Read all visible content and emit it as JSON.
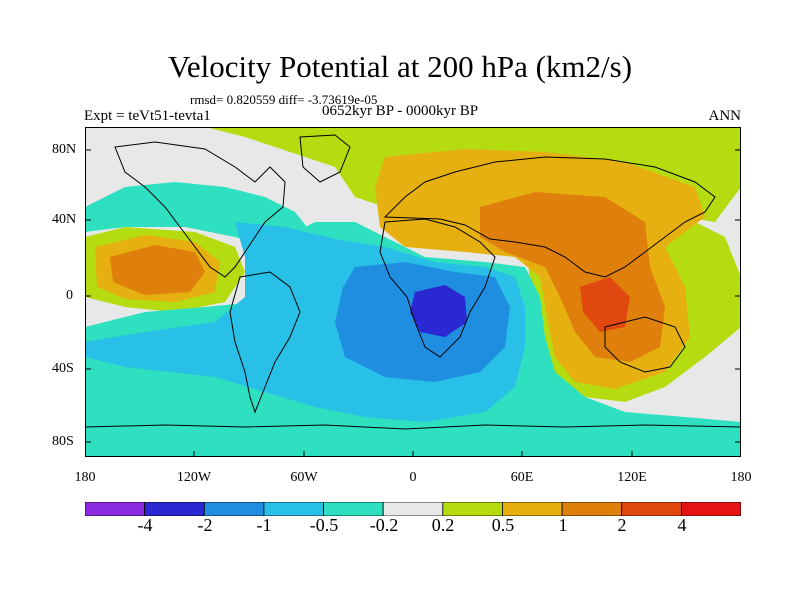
{
  "title": "Velocity Potential at 200 hPa (km2/s)",
  "stats": "rmsd= 0.820559 diff= -3.73619e-05",
  "experiment": "Expt = teVt51-tevta1",
  "period": "0652kyr BP - 0000kyr BP",
  "season": "ANN",
  "lat_labels": [
    "80N",
    "40N",
    "0",
    "40S",
    "80S"
  ],
  "lon_labels": [
    "180",
    "120W",
    "60W",
    "0",
    "60E",
    "120E",
    "180"
  ],
  "colorbar": {
    "labels": [
      "-4",
      "-2",
      "-1",
      "-0.5",
      "-0.2",
      "0.2",
      "0.5",
      "1",
      "2",
      "4"
    ],
    "colors": [
      "#8a2be2",
      "#2a28d0",
      "#1f8ee0",
      "#28c0e6",
      "#2ee0c0",
      "#e8e8e8",
      "#b4dc10",
      "#e6b010",
      "#e0800c",
      "#e04810",
      "#e41414"
    ]
  }
}
